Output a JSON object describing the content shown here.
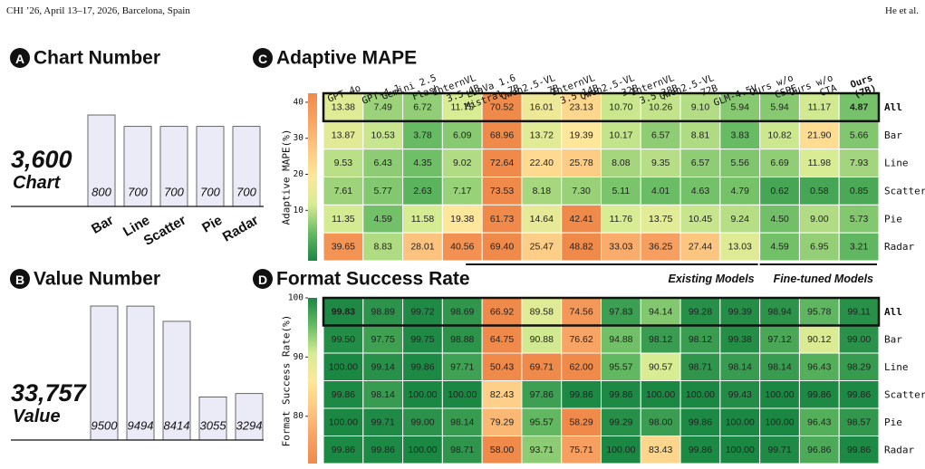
{
  "header": {
    "left": "CHI ’26, April 13–17, 2026, Barcelona, Spain",
    "right": "He et al."
  },
  "chart_data": [
    {
      "type": "bar",
      "badge": "A",
      "title": "Chart Number",
      "total_label": "3,600",
      "unit_label": "Chart",
      "categories": [
        "Bar",
        "Line",
        "Scatter",
        "Pie",
        "Radar"
      ],
      "values": [
        800,
        700,
        700,
        700,
        700
      ],
      "color": "#ebebf7"
    },
    {
      "type": "bar",
      "badge": "B",
      "title": "Value Number",
      "total_label": "33,757",
      "unit_label": "Value",
      "values": [
        9500,
        9494,
        8414,
        3055,
        3294
      ],
      "color": "#ebebf7"
    },
    {
      "type": "heatmap",
      "badge": "C",
      "title": "Adaptive MAPE",
      "clabel": "Adaptive MAPE(%)",
      "x_categories": [
        [
          "GPT-4o"
        ],
        [
          "GPT-4.1"
        ],
        [
          "Gemini 2.5",
          "Flash"
        ],
        [
          "InternVL",
          "3.5 4B"
        ],
        [
          "LLaVa 1.6",
          "Mistral 7B"
        ],
        [
          "Qwen2.5-VL",
          "7B"
        ],
        [
          "InternVL",
          "3.5 14B"
        ],
        [
          "Qwen2.5-VL",
          "32B"
        ],
        [
          "InternVL",
          "3.5 38B"
        ],
        [
          "Qwen2.5-VL",
          "72B"
        ],
        [
          "GLM-4.5V"
        ],
        [
          "Ours w/o",
          "CSPE"
        ],
        [
          "Ours w/o",
          "CTA"
        ],
        [
          "Ours",
          "(7B)"
        ]
      ],
      "bold_categories": [
        13
      ],
      "y_categories": [
        "All",
        "Bar",
        "Line",
        "Scatter",
        "Pie",
        "Radar"
      ],
      "values": [
        [
          13.38,
          7.49,
          6.72,
          11.75,
          70.52,
          16.01,
          23.13,
          10.7,
          10.26,
          9.1,
          5.94,
          5.94,
          11.17,
          4.87
        ],
        [
          13.87,
          10.53,
          3.78,
          6.09,
          68.96,
          13.72,
          19.39,
          10.17,
          6.57,
          8.81,
          3.83,
          10.82,
          21.9,
          5.66
        ],
        [
          9.53,
          6.43,
          4.35,
          9.02,
          72.64,
          22.4,
          25.78,
          8.08,
          9.35,
          6.57,
          5.56,
          6.69,
          11.98,
          7.93
        ],
        [
          7.61,
          5.77,
          2.63,
          7.17,
          73.53,
          8.18,
          7.3,
          5.11,
          4.01,
          4.63,
          4.79,
          0.62,
          0.58,
          0.85
        ],
        [
          11.35,
          4.59,
          11.58,
          19.38,
          61.73,
          14.64,
          42.41,
          11.76,
          13.75,
          10.45,
          9.24,
          4.5,
          9.0,
          5.73
        ],
        [
          39.65,
          8.83,
          28.01,
          40.56,
          69.4,
          25.47,
          48.82,
          33.03,
          36.25,
          27.44,
          13.03,
          4.59,
          6.95,
          3.21
        ]
      ],
      "value_labels": [
        [
          "13.38",
          "7.49",
          "6.72",
          "11.75",
          "70.52",
          "16.01",
          "23.13",
          "10.70",
          "10.26",
          "9.10",
          "5.94",
          "5.94",
          "11.17",
          "4.87"
        ],
        [
          "13.87",
          "10.53",
          "3.78",
          "6.09",
          "68.96",
          "13.72",
          "19.39",
          "10.17",
          "6.57",
          "8.81",
          "3.83",
          "10.82",
          "21.90",
          "5.66"
        ],
        [
          "9.53",
          "6.43",
          "4.35",
          "9.02",
          "72.64",
          "22.40",
          "25.78",
          "8.08",
          "9.35",
          "6.57",
          "5.56",
          "6.69",
          "11.98",
          "7.93"
        ],
        [
          "7.61",
          "5.77",
          "2.63",
          "7.17",
          "73.53",
          "8.18",
          "7.30",
          "5.11",
          "4.01",
          "4.63",
          "4.79",
          "0.62",
          "0.58",
          "0.85"
        ],
        [
          "11.35",
          "4.59",
          "11.58",
          "19.38",
          "61.73",
          "14.64",
          "42.41",
          "11.76",
          "13.75",
          "10.45",
          "9.24",
          "4.50",
          "9.00",
          "5.73"
        ],
        [
          "39.65",
          "8.83",
          "28.01",
          "40.56",
          "69.40",
          "25.47",
          "48.82",
          "33.03",
          "36.25",
          "27.44",
          "13.03",
          "4.59",
          "6.95",
          "3.21"
        ]
      ],
      "bold_cells": [
        [
          0,
          13
        ]
      ],
      "boxed_rows": [
        0
      ],
      "clim": [
        -4,
        42.5
      ],
      "cticks": [
        10,
        20,
        30,
        40
      ],
      "colormap": [
        "#1a8743",
        "#66bb63",
        "#d6ec93",
        "#fee79a",
        "#fdc882",
        "#f8a465",
        "#f08a4b"
      ],
      "groups": [
        {
          "label": "Existing Models",
          "start": 4,
          "end": 10
        },
        {
          "label": "Fine-tuned Models",
          "start": 11,
          "end": 13
        }
      ]
    },
    {
      "type": "heatmap",
      "badge": "D",
      "title": "Format Success Rate",
      "clabel": "Format Success Rate(%)",
      "y_categories": [
        "All",
        "Bar",
        "Line",
        "Scatter",
        "Pie",
        "Radar"
      ],
      "values": [
        [
          99.83,
          98.89,
          99.72,
          98.69,
          66.92,
          89.58,
          74.56,
          97.83,
          94.14,
          99.28,
          99.39,
          98.94,
          95.78,
          99.11
        ],
        [
          99.5,
          97.75,
          99.75,
          98.88,
          64.75,
          90.88,
          76.62,
          94.88,
          98.12,
          98.12,
          99.38,
          97.12,
          90.12,
          99.0
        ],
        [
          100,
          99.14,
          99.86,
          97.71,
          50.43,
          69.71,
          62.0,
          95.57,
          90.57,
          98.71,
          98.14,
          98.14,
          96.43,
          98.29
        ],
        [
          99.86,
          98.14,
          100,
          100,
          82.43,
          97.86,
          99.86,
          99.86,
          100,
          100,
          99.43,
          100,
          99.86,
          99.86
        ],
        [
          100,
          99.71,
          99.0,
          98.14,
          79.29,
          95.57,
          58.29,
          99.29,
          98.0,
          99.86,
          100,
          100,
          96.43,
          98.57
        ],
        [
          99.86,
          99.86,
          100,
          98.71,
          58.0,
          93.71,
          75.71,
          100,
          83.43,
          99.86,
          100,
          99.71,
          96.86,
          99.86
        ]
      ],
      "value_labels": [
        [
          "99.83",
          "98.89",
          "99.72",
          "98.69",
          "66.92",
          "89.58",
          "74.56",
          "97.83",
          "94.14",
          "99.28",
          "99.39",
          "98.94",
          "95.78",
          "99.11"
        ],
        [
          "99.50",
          "97.75",
          "99.75",
          "98.88",
          "64.75",
          "90.88",
          "76.62",
          "94.88",
          "98.12",
          "98.12",
          "99.38",
          "97.12",
          "90.12",
          "99.00"
        ],
        [
          "100.00",
          "99.14",
          "99.86",
          "97.71",
          "50.43",
          "69.71",
          "62.00",
          "95.57",
          "90.57",
          "98.71",
          "98.14",
          "98.14",
          "96.43",
          "98.29"
        ],
        [
          "99.86",
          "98.14",
          "100.00",
          "100.00",
          "82.43",
          "97.86",
          "99.86",
          "99.86",
          "100.00",
          "100.00",
          "99.43",
          "100.00",
          "99.86",
          "99.86"
        ],
        [
          "100.00",
          "99.71",
          "99.00",
          "98.14",
          "79.29",
          "95.57",
          "58.29",
          "99.29",
          "98.00",
          "99.86",
          "100.00",
          "100.00",
          "96.43",
          "98.57"
        ],
        [
          "99.86",
          "99.86",
          "100.00",
          "98.71",
          "58.00",
          "93.71",
          "75.71",
          "100.00",
          "83.43",
          "99.86",
          "100.00",
          "99.71",
          "96.86",
          "99.86"
        ]
      ],
      "bold_cells": [
        [
          0,
          0
        ]
      ],
      "boxed_rows": [
        0
      ],
      "clim": [
        72,
        100
      ],
      "cticks": [
        80,
        90,
        100
      ],
      "colormap": [
        "#f08a4b",
        "#f8a465",
        "#fdc882",
        "#fee79a",
        "#d6ec93",
        "#66bb63",
        "#1a8743"
      ]
    }
  ]
}
